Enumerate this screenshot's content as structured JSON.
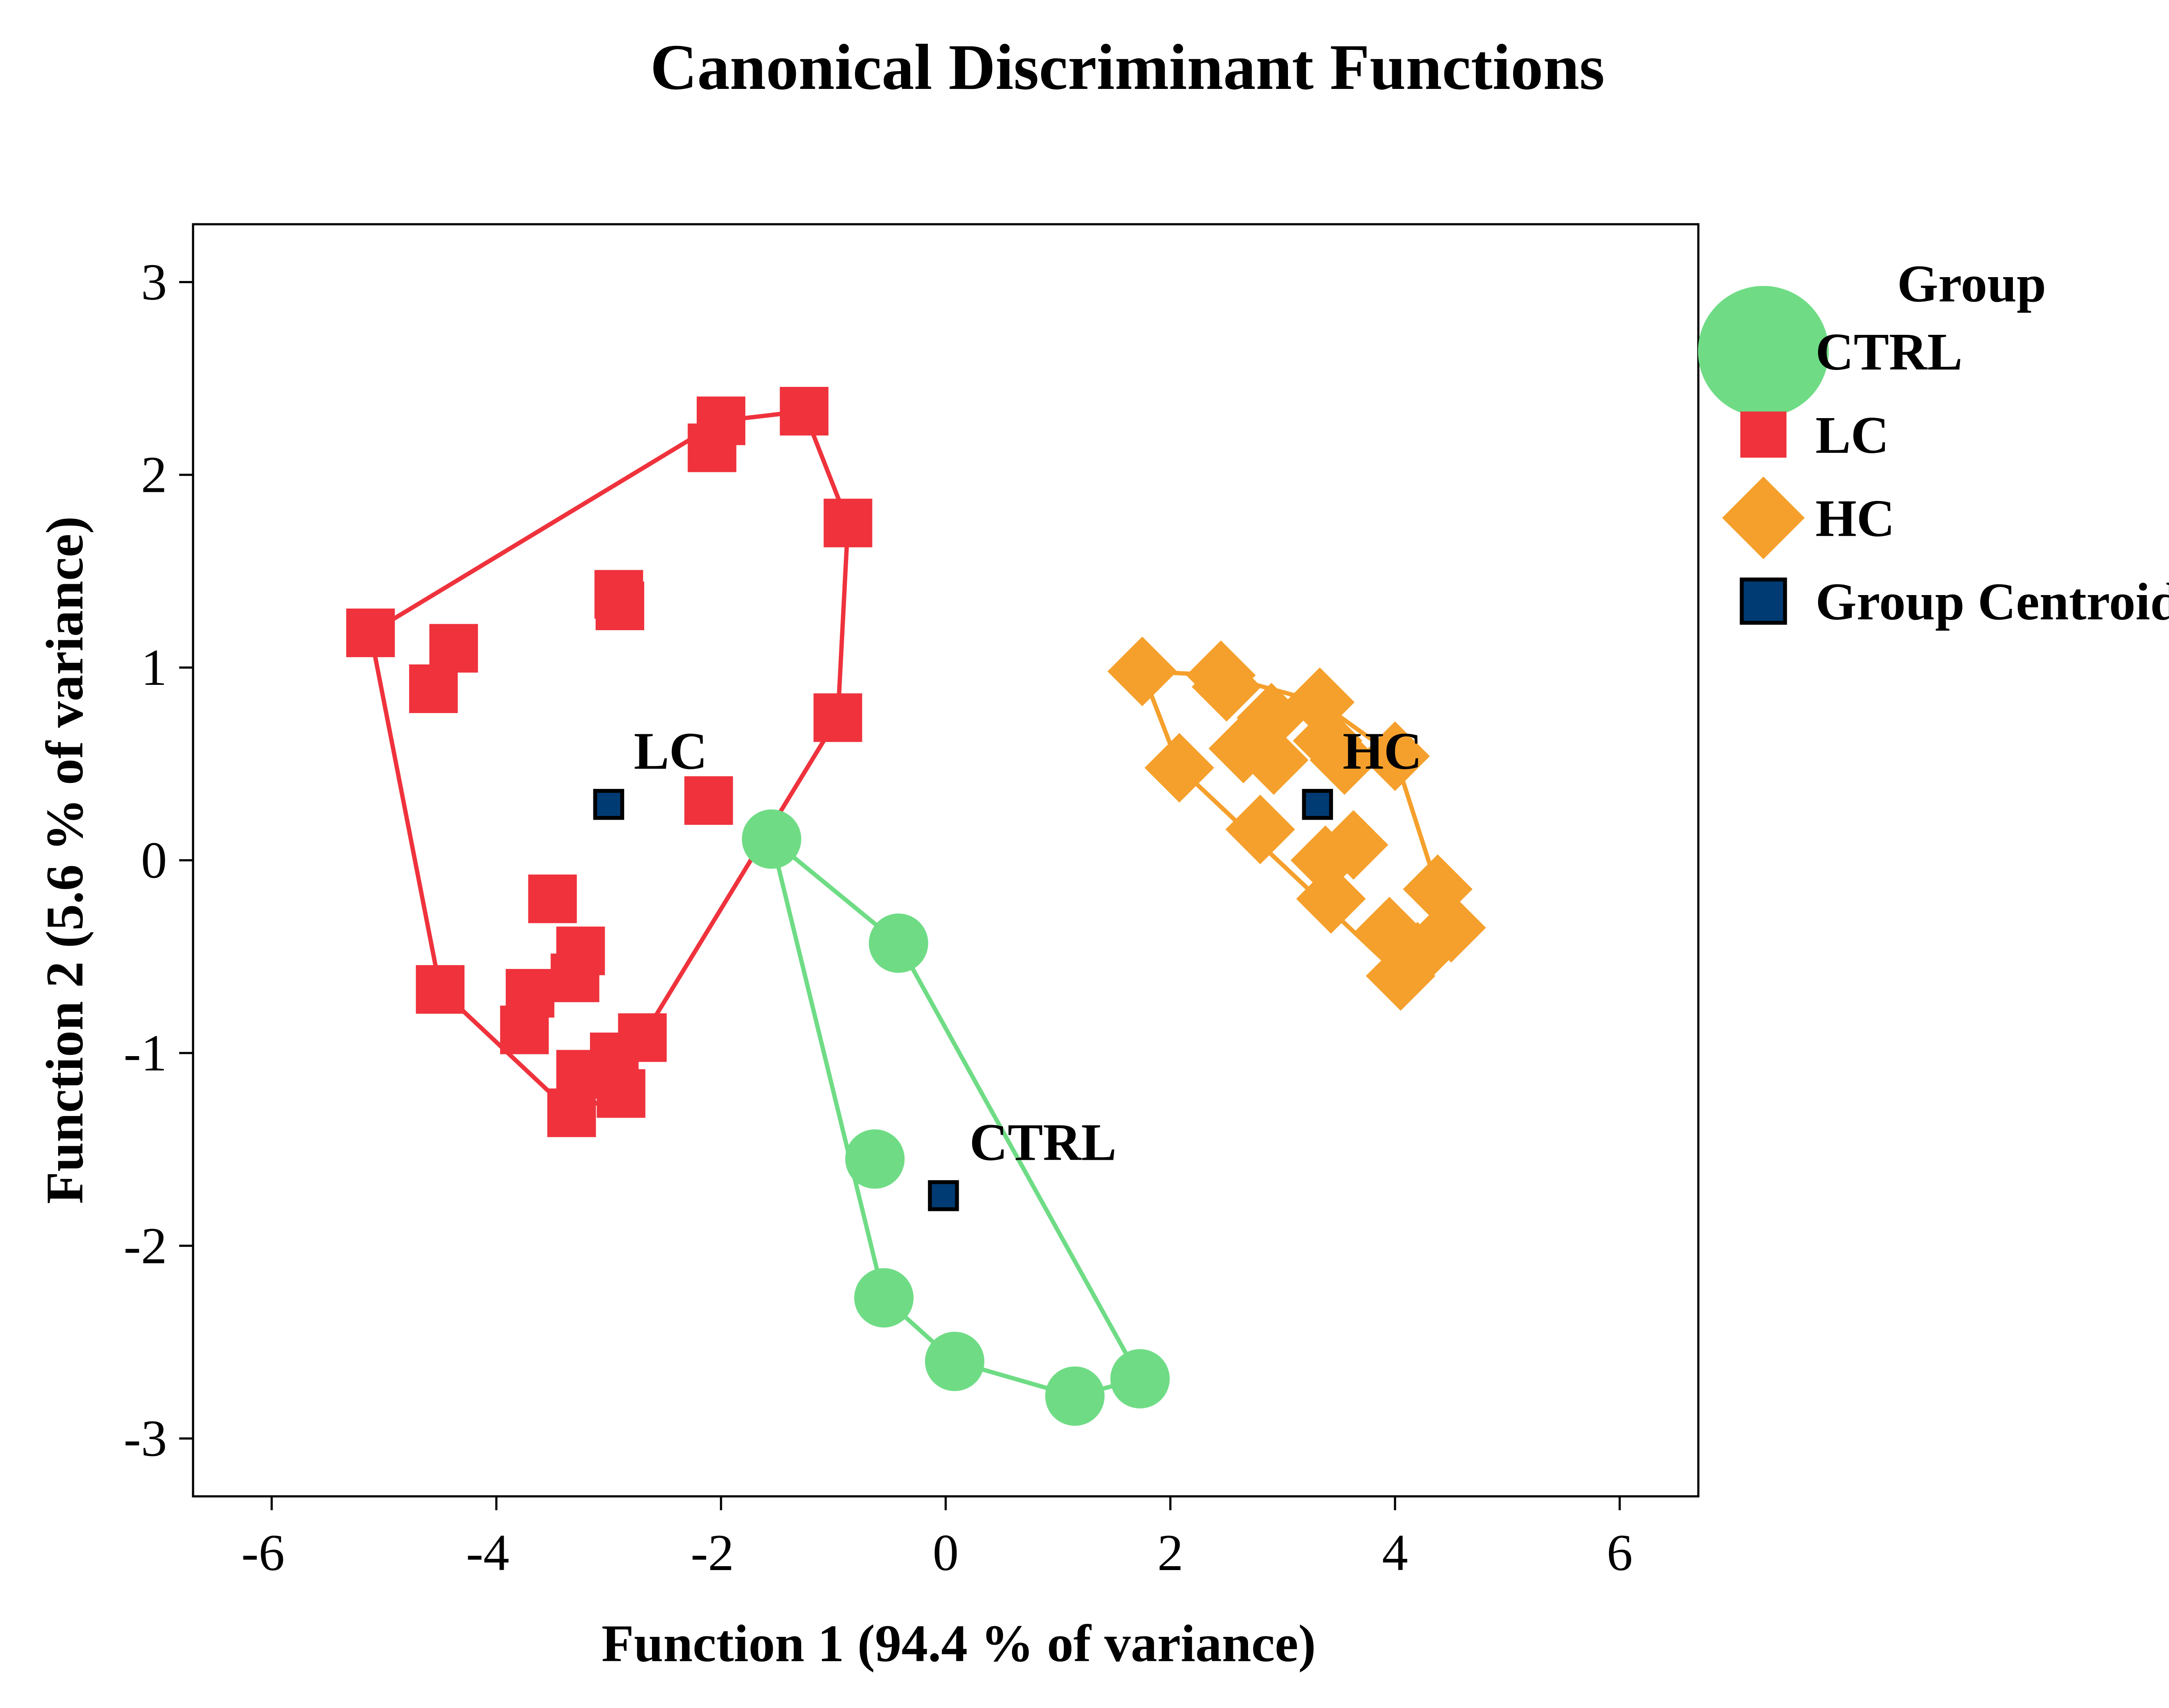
{
  "chart_data": {
    "type": "scatter",
    "title": "Canonical Discriminant Functions",
    "xlabel": "Function 1 (94.4 % of variance)",
    "ylabel": "Function 2 (5.6 % of variance)",
    "xlim": [
      -6.7,
      6.7
    ],
    "ylim": [
      -3.3,
      3.3
    ],
    "xticks": [
      -6,
      -4,
      -2,
      0,
      2,
      4,
      6
    ],
    "yticks": [
      -3,
      -2,
      -1,
      0,
      1,
      2,
      3
    ],
    "grid": false,
    "legend": {
      "title": "Group",
      "position": "right"
    },
    "colors": {
      "CTRL": "#6fdc85",
      "LC": "#ef323c",
      "HC": "#f5a02c",
      "centroid": "#003b73"
    },
    "series": [
      {
        "name": "CTRL",
        "marker": "circle",
        "points": [
          [
            -1.55,
            0.11
          ],
          [
            -0.42,
            -0.43
          ],
          [
            -0.63,
            -1.55
          ],
          [
            -0.55,
            -2.27
          ],
          [
            0.08,
            -2.6
          ],
          [
            1.15,
            -2.78
          ],
          [
            1.73,
            -2.69
          ]
        ],
        "hull": [
          [
            -1.55,
            0.11
          ],
          [
            -0.42,
            -0.43
          ],
          [
            1.73,
            -2.69
          ],
          [
            1.15,
            -2.78
          ],
          [
            0.08,
            -2.6
          ],
          [
            -0.55,
            -2.27
          ]
        ]
      },
      {
        "name": "LC",
        "marker": "square",
        "points": [
          [
            -5.12,
            1.18
          ],
          [
            -4.38,
            1.1
          ],
          [
            -4.56,
            0.89
          ],
          [
            -2.08,
            2.14
          ],
          [
            -2.0,
            2.28
          ],
          [
            -1.26,
            2.33
          ],
          [
            -0.87,
            1.75
          ],
          [
            -0.96,
            0.74
          ],
          [
            -2.91,
            1.38
          ],
          [
            -2.9,
            1.32
          ],
          [
            -2.11,
            0.31
          ],
          [
            -3.5,
            -0.2
          ],
          [
            -3.25,
            -0.47
          ],
          [
            -3.3,
            -0.61
          ],
          [
            -3.7,
            -0.69
          ],
          [
            -3.75,
            -0.88
          ],
          [
            -4.5,
            -0.67
          ],
          [
            -2.7,
            -0.92
          ],
          [
            -2.95,
            -1.02
          ],
          [
            -3.25,
            -1.11
          ],
          [
            -2.89,
            -1.21
          ],
          [
            -3.33,
            -1.31
          ]
        ],
        "hull": [
          [
            -5.12,
            1.18
          ],
          [
            -2.0,
            2.28
          ],
          [
            -1.26,
            2.33
          ],
          [
            -0.87,
            1.75
          ],
          [
            -0.96,
            0.74
          ],
          [
            -2.7,
            -0.92
          ],
          [
            -2.89,
            -1.21
          ],
          [
            -3.33,
            -1.31
          ],
          [
            -4.5,
            -0.67
          ]
        ]
      },
      {
        "name": "HC",
        "marker": "diamond",
        "points": [
          [
            1.75,
            0.98
          ],
          [
            2.45,
            0.96
          ],
          [
            2.5,
            0.9
          ],
          [
            3.33,
            0.82
          ],
          [
            2.9,
            0.74
          ],
          [
            3.4,
            0.62
          ],
          [
            3.55,
            0.52
          ],
          [
            2.65,
            0.58
          ],
          [
            2.92,
            0.52
          ],
          [
            2.08,
            0.48
          ],
          [
            4.0,
            0.54
          ],
          [
            2.8,
            0.16
          ],
          [
            3.63,
            0.08
          ],
          [
            3.38,
            0.0
          ],
          [
            3.43,
            -0.2
          ],
          [
            4.38,
            -0.15
          ],
          [
            3.95,
            -0.37
          ],
          [
            4.2,
            -0.5
          ],
          [
            4.05,
            -0.6
          ],
          [
            4.5,
            -0.35
          ]
        ],
        "hull": [
          [
            1.75,
            0.98
          ],
          [
            2.45,
            0.96
          ],
          [
            3.33,
            0.82
          ],
          [
            4.0,
            0.54
          ],
          [
            4.38,
            -0.15
          ],
          [
            4.5,
            -0.35
          ],
          [
            4.05,
            -0.6
          ],
          [
            2.08,
            0.48
          ]
        ]
      }
    ],
    "centroids": [
      {
        "name": "LC",
        "label": "LC",
        "x": -3.0,
        "y": 0.29
      },
      {
        "name": "HC",
        "label": "HC",
        "x": 3.31,
        "y": 0.29
      },
      {
        "name": "CTRL",
        "label": "CTRL",
        "x": -0.02,
        "y": -1.74
      }
    ],
    "legend_entries": [
      {
        "label": "CTRL",
        "marker": "circle",
        "color": "#6fdc85"
      },
      {
        "label": "LC",
        "marker": "square",
        "color": "#ef323c"
      },
      {
        "label": "HC",
        "marker": "diamond",
        "color": "#f5a02c"
      },
      {
        "label": "Group Centroid",
        "marker": "centroid",
        "color": "#003b73"
      }
    ]
  }
}
